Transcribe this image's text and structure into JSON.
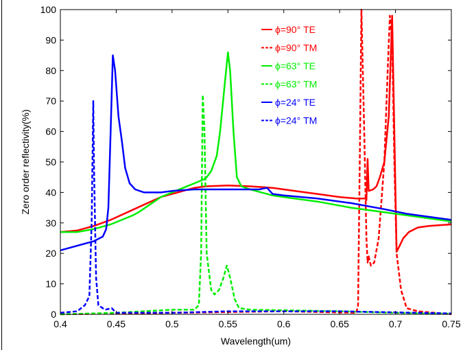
{
  "chart_data": {
    "type": "line",
    "title": "",
    "xlabel": "Wavelength(um)",
    "ylabel": "Zero order reflectivity(%)",
    "xlim": [
      0.4,
      0.75
    ],
    "ylim": [
      0,
      100
    ],
    "xticks": [
      "0.4",
      "0.45",
      "0.5",
      "0.55",
      "0.6",
      "0.65",
      "0.7",
      "0.75"
    ],
    "yticks": [
      "0",
      "10",
      "20",
      "30",
      "40",
      "50",
      "60",
      "70",
      "80",
      "90",
      "100"
    ],
    "grid": false,
    "legend_position": "top-right",
    "series": [
      {
        "name": "ϕ=90° TE",
        "color": "#ff0000",
        "dash": "solid",
        "points": [
          [
            0.4,
            27
          ],
          [
            0.415,
            27.5
          ],
          [
            0.43,
            29
          ],
          [
            0.445,
            31
          ],
          [
            0.46,
            33.5
          ],
          [
            0.475,
            36
          ],
          [
            0.49,
            38.5
          ],
          [
            0.51,
            40.5
          ],
          [
            0.52,
            41.5
          ],
          [
            0.53,
            42
          ],
          [
            0.55,
            42.3
          ],
          [
            0.57,
            42
          ],
          [
            0.59,
            41.5
          ],
          [
            0.61,
            40.5
          ],
          [
            0.63,
            39.5
          ],
          [
            0.65,
            38.5
          ],
          [
            0.665,
            38
          ],
          [
            0.673,
            38
          ],
          [
            0.674,
            37.5
          ],
          [
            0.675,
            51
          ],
          [
            0.676,
            40.5
          ],
          [
            0.68,
            41
          ],
          [
            0.683,
            42
          ],
          [
            0.686,
            45
          ],
          [
            0.69,
            50
          ],
          [
            0.694,
            65
          ],
          [
            0.697,
            98
          ],
          [
            0.699,
            60
          ],
          [
            0.701,
            20.5
          ],
          [
            0.703,
            22
          ],
          [
            0.707,
            25
          ],
          [
            0.712,
            27
          ],
          [
            0.72,
            28.5
          ],
          [
            0.73,
            29
          ],
          [
            0.75,
            29.5
          ]
        ]
      },
      {
        "name": "ϕ=90° TM",
        "color": "#ff0000",
        "dash": "dashed",
        "points": [
          [
            0.4,
            0
          ],
          [
            0.5,
            0.5
          ],
          [
            0.6,
            1
          ],
          [
            0.665,
            0.5
          ],
          [
            0.6665,
            3
          ],
          [
            0.668,
            50
          ],
          [
            0.6695,
            100
          ],
          [
            0.672,
            60
          ],
          [
            0.674,
            25
          ],
          [
            0.675,
            17
          ],
          [
            0.676,
            19
          ],
          [
            0.678,
            16
          ],
          [
            0.681,
            17
          ],
          [
            0.685,
            25
          ],
          [
            0.69,
            50
          ],
          [
            0.693,
            80
          ],
          [
            0.695,
            98
          ],
          [
            0.697,
            90
          ],
          [
            0.699,
            50
          ],
          [
            0.701,
            20
          ],
          [
            0.705,
            8
          ],
          [
            0.71,
            2
          ],
          [
            0.72,
            1
          ],
          [
            0.75,
            0
          ]
        ]
      },
      {
        "name": "ϕ=63° TE",
        "color": "#00ee00",
        "dash": "solid",
        "points": [
          [
            0.4,
            27
          ],
          [
            0.415,
            27
          ],
          [
            0.43,
            28
          ],
          [
            0.445,
            29.5
          ],
          [
            0.455,
            31
          ],
          [
            0.465,
            32.5
          ],
          [
            0.47,
            33.5
          ],
          [
            0.48,
            36
          ],
          [
            0.49,
            38.5
          ],
          [
            0.5,
            40
          ],
          [
            0.51,
            41.5
          ],
          [
            0.52,
            43
          ],
          [
            0.53,
            44.5
          ],
          [
            0.535,
            47
          ],
          [
            0.54,
            52
          ],
          [
            0.543,
            60
          ],
          [
            0.547,
            75
          ],
          [
            0.55,
            86
          ],
          [
            0.552,
            80
          ],
          [
            0.555,
            60
          ],
          [
            0.558,
            45
          ],
          [
            0.562,
            42
          ],
          [
            0.57,
            41
          ],
          [
            0.58,
            40
          ],
          [
            0.59,
            39
          ],
          [
            0.6,
            38.5
          ],
          [
            0.63,
            37
          ],
          [
            0.66,
            35
          ],
          [
            0.7,
            33
          ],
          [
            0.75,
            30.5
          ]
        ]
      },
      {
        "name": "ϕ=63° TM",
        "color": "#00ee00",
        "dash": "dashed",
        "points": [
          [
            0.4,
            0
          ],
          [
            0.45,
            0.5
          ],
          [
            0.5,
            1.5
          ],
          [
            0.52,
            1.5
          ],
          [
            0.524,
            3
          ],
          [
            0.526,
            20
          ],
          [
            0.5275,
            72
          ],
          [
            0.529,
            60
          ],
          [
            0.531,
            20
          ],
          [
            0.535,
            8
          ],
          [
            0.538,
            6.5
          ],
          [
            0.542,
            8
          ],
          [
            0.546,
            12
          ],
          [
            0.549,
            16
          ],
          [
            0.552,
            12
          ],
          [
            0.556,
            5
          ],
          [
            0.56,
            2
          ],
          [
            0.57,
            1.5
          ],
          [
            0.65,
            1
          ],
          [
            0.7,
            0.5
          ],
          [
            0.75,
            0.2
          ]
        ]
      },
      {
        "name": "ϕ=24° TE",
        "color": "#0000ff",
        "dash": "solid",
        "points": [
          [
            0.4,
            21
          ],
          [
            0.43,
            24
          ],
          [
            0.438,
            25.5
          ],
          [
            0.441,
            28
          ],
          [
            0.443,
            35
          ],
          [
            0.445,
            60
          ],
          [
            0.447,
            85
          ],
          [
            0.449,
            80
          ],
          [
            0.452,
            65
          ],
          [
            0.455,
            57
          ],
          [
            0.458,
            48
          ],
          [
            0.462,
            43
          ],
          [
            0.467,
            41
          ],
          [
            0.475,
            40
          ],
          [
            0.49,
            40
          ],
          [
            0.5,
            40.5
          ],
          [
            0.52,
            41
          ],
          [
            0.56,
            41
          ],
          [
            0.578,
            41
          ],
          [
            0.585,
            41.5
          ],
          [
            0.59,
            39.5
          ],
          [
            0.6,
            39
          ],
          [
            0.63,
            38
          ],
          [
            0.66,
            36.5
          ],
          [
            0.69,
            34.5
          ],
          [
            0.71,
            33
          ],
          [
            0.75,
            31
          ]
        ]
      },
      {
        "name": "ϕ=24° TM",
        "color": "#0000ff",
        "dash": "dashed",
        "points": [
          [
            0.4,
            0.5
          ],
          [
            0.415,
            1
          ],
          [
            0.422,
            3
          ],
          [
            0.426,
            6
          ],
          [
            0.428,
            30
          ],
          [
            0.4295,
            70
          ],
          [
            0.43,
            50
          ],
          [
            0.432,
            12
          ],
          [
            0.434,
            3
          ],
          [
            0.44,
            1.5
          ],
          [
            0.446,
            2
          ],
          [
            0.45,
            0.5
          ],
          [
            0.5,
            0.5
          ],
          [
            0.55,
            1
          ],
          [
            0.65,
            1
          ],
          [
            0.72,
            0.5
          ],
          [
            0.75,
            0.3
          ]
        ]
      }
    ]
  }
}
